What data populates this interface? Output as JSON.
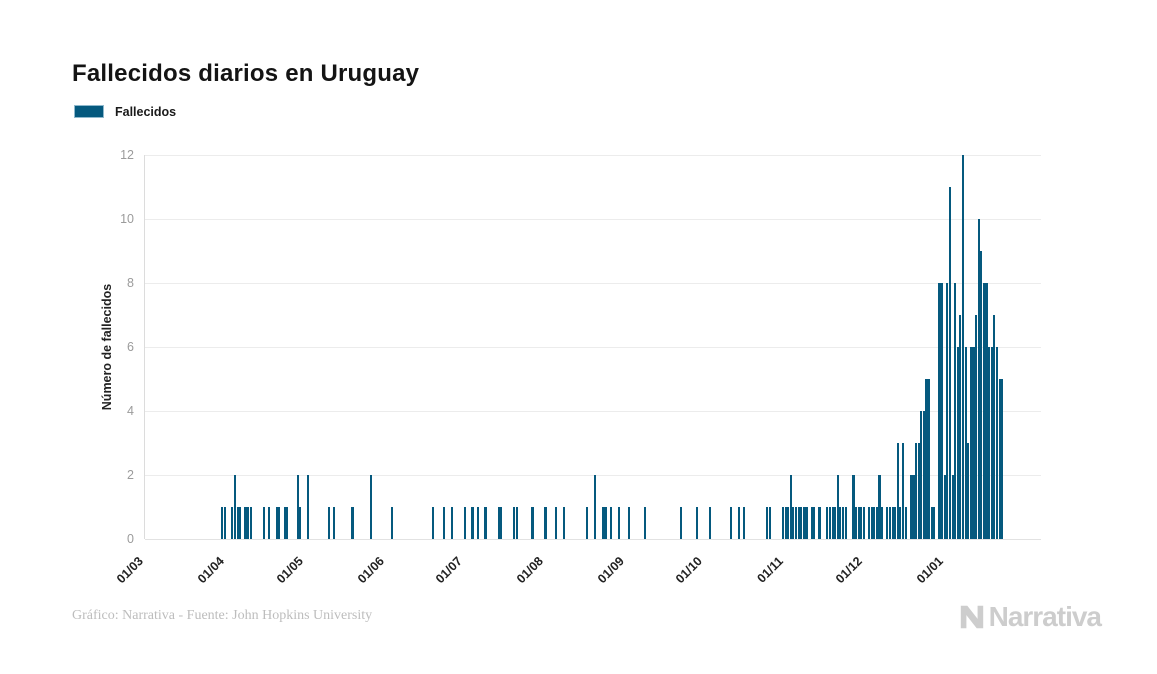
{
  "title": {
    "text": "Fallecidos diarios en Uruguay"
  },
  "legend": {
    "label": "Fallecidos",
    "swatch_color": "#05597e"
  },
  "footer": {
    "credit": "Gráfico: Narrativa - Fuente: John Hopkins University",
    "logo_text": "Narrativa"
  },
  "chart_data": {
    "type": "bar",
    "title": "Fallecidos diarios en Uruguay",
    "series_name": "Fallecidos",
    "ylabel": "Número de fallecidos",
    "xlabel": "",
    "ylim": [
      0,
      12
    ],
    "y_ticks": [
      0,
      2,
      4,
      6,
      8,
      10,
      12
    ],
    "grid": true,
    "legend_position": "top-left",
    "bar_color": "#05597e",
    "x_tick_labels": [
      "01/03",
      "01/04",
      "01/05",
      "01/06",
      "01/07",
      "01/08",
      "01/09",
      "01/10",
      "01/11",
      "01/12",
      "01/01"
    ],
    "x_tick_day_indices": [
      0,
      31,
      61,
      92,
      122,
      153,
      184,
      214,
      245,
      275,
      306
    ],
    "num_days": 343,
    "daily_values_sparse": {
      "29": 1,
      "30": 1,
      "33": 1,
      "34": 2,
      "35": 1,
      "36": 1,
      "38": 1,
      "39": 1,
      "40": 1,
      "45": 1,
      "47": 1,
      "50": 1,
      "51": 1,
      "53": 1,
      "54": 1,
      "58": 2,
      "59": 1,
      "62": 2,
      "70": 1,
      "72": 1,
      "79": 1,
      "86": 2,
      "94": 1,
      "110": 1,
      "114": 1,
      "117": 1,
      "122": 1,
      "125": 1,
      "127": 1,
      "130": 1,
      "135": 1,
      "136": 1,
      "141": 1,
      "142": 1,
      "148": 1,
      "153": 1,
      "157": 1,
      "160": 1,
      "169": 1,
      "172": 2,
      "175": 1,
      "176": 1,
      "178": 1,
      "181": 1,
      "185": 1,
      "191": 1,
      "205": 1,
      "211": 1,
      "216": 1,
      "224": 1,
      "227": 1,
      "229": 1,
      "238": 1,
      "239": 1,
      "244": 1,
      "245": 1,
      "246": 1,
      "247": 2,
      "248": 1,
      "249": 1,
      "250": 1,
      "251": 1,
      "252": 1,
      "253": 1,
      "255": 1,
      "256": 1,
      "258": 1,
      "261": 1,
      "262": 1,
      "263": 1,
      "264": 1,
      "265": 2,
      "266": 1,
      "267": 1,
      "268": 1,
      "271": 2,
      "272": 1,
      "273": 1,
      "274": 1,
      "275": 1,
      "277": 1,
      "278": 1,
      "279": 1,
      "280": 1,
      "281": 2,
      "282": 1,
      "284": 1,
      "285": 1,
      "286": 1,
      "287": 1,
      "288": 3,
      "289": 1,
      "290": 3,
      "291": 1,
      "293": 2,
      "294": 2,
      "295": 3,
      "296": 3,
      "297": 4,
      "298": 4,
      "299": 5,
      "300": 5,
      "301": 1,
      "302": 1,
      "304": 8,
      "305": 8,
      "306": 2,
      "307": 8,
      "308": 11,
      "309": 2,
      "310": 8,
      "311": 6,
      "312": 7,
      "313": 12,
      "314": 6,
      "315": 3,
      "316": 6,
      "317": 6,
      "318": 7,
      "319": 10,
      "320": 9,
      "321": 8,
      "322": 8,
      "323": 6,
      "324": 6,
      "325": 7,
      "326": 6,
      "327": 5,
      "328": 5
    }
  }
}
